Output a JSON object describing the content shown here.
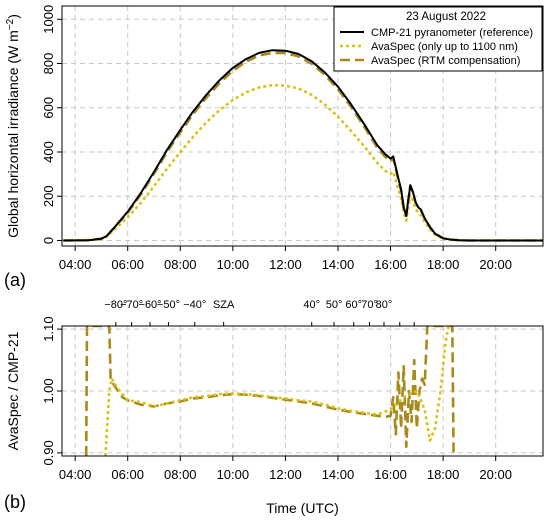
{
  "colors": {
    "reference": "#000000",
    "spectral_only": "#d8c21a",
    "rtm": "#a88a1c",
    "residual": "#c76a20",
    "grid": "#c8c8c8"
  },
  "chart_data": [
    {
      "id": "panel-a",
      "type": "line",
      "panel_label": "(a)",
      "legend_title": "23 August 2022",
      "legend_position": "top-right",
      "xlabel": "",
      "ylabel": "Global horizontal irradiance (W m⁻²)",
      "xlim": [
        3.5,
        21.8
      ],
      "ylim": [
        -25,
        1060
      ],
      "x_ticks": [
        4,
        6,
        8,
        10,
        12,
        14,
        16,
        18,
        20
      ],
      "x_tick_labels": [
        "04:00",
        "06:00",
        "08:00",
        "10:00",
        "12:00",
        "14:00",
        "16:00",
        "18:00",
        "20:00"
      ],
      "y_ticks": [
        0,
        200,
        400,
        600,
        800,
        1000
      ],
      "y_tick_labels": [
        "0",
        "200",
        "400",
        "600",
        "800",
        "1000"
      ],
      "grid": true,
      "series": [
        {
          "name": "CMP-21 pyranometer (reference)",
          "style": "solid",
          "color": "#000000",
          "x": [
            3.55,
            4.5,
            5.0,
            5.2,
            5.5,
            6.0,
            6.5,
            7.0,
            7.5,
            8.0,
            8.5,
            9.0,
            9.5,
            10.0,
            10.5,
            11.0,
            11.5,
            12.0,
            12.5,
            13.0,
            13.5,
            14.0,
            14.5,
            15.0,
            15.5,
            15.8,
            16.0,
            16.1,
            16.2,
            16.3,
            16.4,
            16.5,
            16.6,
            16.65,
            16.75,
            16.85,
            16.95,
            17.05,
            17.15,
            17.3,
            17.5,
            17.7,
            18.0,
            18.3,
            18.6,
            19.0,
            21.8
          ],
          "y": [
            0,
            1,
            8,
            20,
            60,
            130,
            215,
            310,
            410,
            500,
            585,
            660,
            725,
            780,
            820,
            848,
            860,
            858,
            843,
            810,
            760,
            695,
            615,
            525,
            430,
            390,
            370,
            380,
            330,
            280,
            230,
            150,
            110,
            160,
            250,
            220,
            175,
            150,
            140,
            100,
            60,
            30,
            10,
            4,
            1,
            0,
            0
          ]
        },
        {
          "name": "AvaSpec (only up to 1100 nm)",
          "style": "dotted",
          "color": "#d8c21a",
          "x": [
            3.55,
            4.5,
            5.0,
            5.2,
            5.5,
            6.0,
            6.5,
            7.0,
            7.5,
            8.0,
            8.5,
            9.0,
            9.5,
            10.0,
            10.5,
            11.0,
            11.5,
            12.0,
            12.5,
            13.0,
            13.5,
            14.0,
            14.5,
            15.0,
            15.5,
            15.8,
            16.0,
            16.1,
            16.2,
            16.3,
            16.4,
            16.5,
            16.6,
            16.65,
            16.75,
            16.85,
            16.95,
            17.05,
            17.15,
            17.3,
            17.5,
            17.7,
            18.0,
            18.3,
            18.6,
            19.0,
            21.8
          ],
          "y": [
            0,
            1,
            7,
            17,
            50,
            105,
            170,
            245,
            325,
            400,
            470,
            535,
            590,
            635,
            670,
            692,
            702,
            700,
            687,
            658,
            615,
            560,
            495,
            425,
            350,
            315,
            300,
            310,
            270,
            230,
            190,
            125,
            90,
            130,
            205,
            180,
            145,
            125,
            115,
            82,
            50,
            25,
            8,
            3,
            1,
            0,
            0
          ]
        },
        {
          "name": "AvaSpec (RTM compensation)",
          "style": "dashed",
          "color": "#a88a1c",
          "x": [
            3.55,
            4.5,
            5.0,
            5.2,
            5.5,
            6.0,
            6.5,
            7.0,
            7.5,
            8.0,
            8.5,
            9.0,
            9.5,
            10.0,
            10.5,
            11.0,
            11.5,
            12.0,
            12.5,
            13.0,
            13.5,
            14.0,
            14.5,
            15.0,
            15.5,
            15.8,
            16.0,
            16.1,
            16.2,
            16.3,
            16.4,
            16.5,
            16.6,
            16.65,
            16.75,
            16.85,
            16.95,
            17.05,
            17.15,
            17.3,
            17.5,
            17.7,
            18.0,
            18.3,
            18.6,
            19.0,
            21.8
          ],
          "y": [
            0,
            1,
            8,
            20,
            59,
            126,
            208,
            302,
            400,
            489,
            573,
            647,
            712,
            767,
            808,
            836,
            848,
            847,
            832,
            799,
            749,
            684,
            604,
            514,
            418,
            378,
            358,
            372,
            325,
            272,
            225,
            145,
            112,
            158,
            248,
            215,
            172,
            146,
            138,
            98,
            60,
            30,
            10,
            4,
            1,
            0,
            0
          ]
        }
      ]
    },
    {
      "id": "panel-b",
      "type": "line",
      "panel_label": "(b)",
      "xlabel": "Time (UTC)",
      "ylabel": "AvaSpec / CMP-21",
      "xlim": [
        3.5,
        21.8
      ],
      "ylim": [
        0.895,
        1.105
      ],
      "x_ticks": [
        4,
        6,
        8,
        10,
        12,
        14,
        16,
        18,
        20
      ],
      "x_tick_labels": [
        "04:00",
        "06:00",
        "08:00",
        "10:00",
        "12:00",
        "14:00",
        "16:00",
        "18:00",
        "20:00"
      ],
      "y_ticks": [
        0.9,
        1.0,
        1.1
      ],
      "y_tick_labels": [
        "0.90",
        "1.00",
        "1.10"
      ],
      "grid": true,
      "top_axis": {
        "label": "SZA",
        "ticks": [
          5.55,
          6.15,
          6.85,
          7.55,
          8.55,
          9.65,
          13.0,
          13.85,
          14.6,
          15.2,
          15.75,
          16.35,
          16.9
        ],
        "tick_labels": [
          "−80°",
          "−70°",
          "−60°",
          "−50°",
          "−40°",
          "SZA",
          "40°",
          "50°",
          "60°",
          "70°",
          "80°",
          "",
          ""
        ]
      },
      "series": [
        {
          "name": "AvaSpec (only up to 1100 nm) ratio",
          "style": "dotted",
          "color": "#d8c21a",
          "x": [
            5.15,
            5.2,
            5.3,
            5.4,
            5.6,
            6.0,
            6.5,
            7.0,
            7.5,
            8.0,
            8.5,
            9.0,
            9.5,
            10.0,
            10.5,
            11.0,
            11.5,
            12.0,
            12.5,
            13.0,
            13.5,
            14.0,
            14.5,
            15.0,
            15.5,
            16.0,
            16.5,
            17.0,
            17.3,
            17.5,
            17.7,
            17.9,
            18.0,
            18.1,
            18.2
          ],
          "y": [
            0.895,
            0.93,
            1.0,
            1.02,
            1.005,
            0.985,
            0.982,
            0.975,
            0.98,
            0.985,
            0.99,
            0.992,
            0.995,
            0.996,
            0.995,
            0.993,
            0.99,
            0.988,
            0.985,
            0.983,
            0.978,
            0.972,
            0.968,
            0.965,
            0.962,
            0.97,
            0.99,
            1.0,
            0.97,
            0.92,
            0.94,
            1.0,
            1.04,
            1.08,
            1.105
          ]
        },
        {
          "name": "AvaSpec (RTM compensation) ratio",
          "style": "dashed",
          "color": "#a88a1c",
          "x": [
            4.42,
            4.45,
            4.55,
            5.3,
            5.35,
            5.5,
            5.8,
            6.0,
            6.5,
            7.0,
            7.5,
            8.0,
            8.5,
            9.0,
            9.5,
            10.0,
            10.5,
            11.0,
            11.5,
            12.0,
            12.5,
            13.0,
            13.5,
            14.0,
            14.5,
            15.0,
            15.5,
            15.8,
            16.0,
            16.1,
            16.2,
            16.3,
            16.4,
            16.5,
            16.6,
            16.7,
            16.8,
            16.9,
            17.0,
            17.1,
            17.2,
            17.3,
            17.4,
            17.5,
            18.35,
            18.4,
            18.45
          ],
          "y": [
            0.895,
            1.105,
            1.105,
            1.105,
            1.02,
            1.008,
            0.99,
            0.985,
            0.978,
            0.975,
            0.98,
            0.983,
            0.988,
            0.99,
            0.993,
            0.995,
            0.994,
            0.992,
            0.989,
            0.986,
            0.983,
            0.98,
            0.975,
            0.97,
            0.966,
            0.963,
            0.96,
            0.958,
            0.96,
            0.99,
            0.93,
            1.03,
            0.94,
            1.04,
            0.91,
            1.0,
            0.95,
            1.05,
            0.94,
            1.0,
            1.02,
            1.01,
            1.105,
            1.105,
            1.105,
            0.895,
            0.895
          ]
        }
      ]
    }
  ]
}
